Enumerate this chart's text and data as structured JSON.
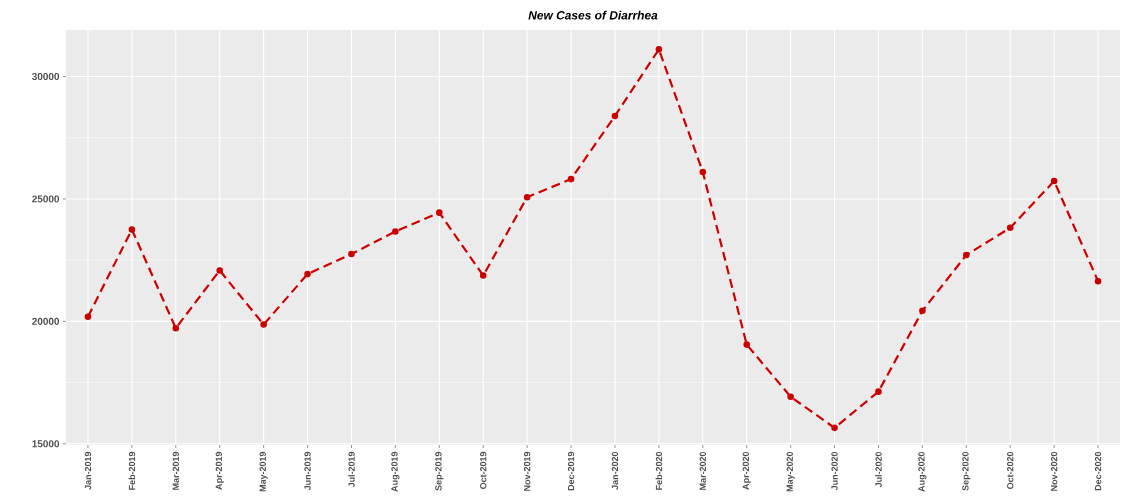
{
  "chart_data": {
    "type": "line",
    "title": "New Cases of Diarrhea",
    "categories": [
      "Jan-2019",
      "Feb-2019",
      "Mar-2019",
      "Apr-2019",
      "May-2019",
      "Jun-2019",
      "Jul-2019",
      "Aug-2019",
      "Sep-2019",
      "Oct-2019",
      "Nov-2019",
      "Dec-2019",
      "Jan-2020",
      "Feb-2020",
      "Mar-2020",
      "Apr-2020",
      "May-2020",
      "Jun-2020",
      "Jul-2020",
      "Aug-2020",
      "Sep-2020",
      "Oct-2020",
      "Nov-2020",
      "Dec-2020"
    ],
    "series": [
      {
        "color": "#cc0000",
        "values": [
          20190,
          23750,
          19720,
          22080,
          19870,
          21930,
          22750,
          23670,
          24440,
          21870,
          25070,
          25810,
          28390,
          31110,
          26100,
          19050,
          16920,
          15650,
          17130,
          20430,
          22710,
          23820,
          25730,
          21640
        ]
      }
    ],
    "ylim": [
      14950,
      31900
    ],
    "yticks": [
      15000,
      20000,
      25000,
      30000
    ],
    "grid": true,
    "marker": "circle",
    "line_style": "dashed"
  }
}
